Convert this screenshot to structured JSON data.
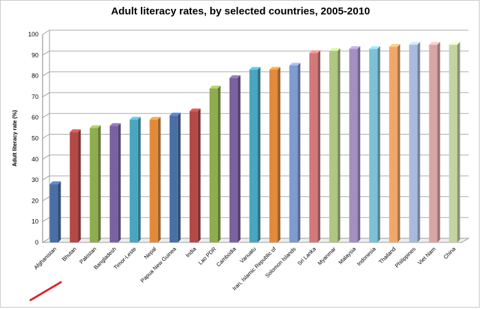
{
  "chart_data": {
    "type": "bar",
    "title": "Adult literacy rates, by selected countries, 2005-2010",
    "xlabel": "",
    "ylabel": "Adult literacy rate (%)",
    "ylim": [
      0,
      100
    ],
    "yticks": [
      "0",
      "10",
      "20",
      "30",
      "40",
      "50",
      "60",
      "70",
      "80",
      "90",
      "100"
    ],
    "grid": true,
    "legend": "none",
    "categories": [
      "Afghanistan",
      "Bhutan",
      "Pakistan",
      "Bangladesh",
      "Timor-Leste",
      "Nepal",
      "Papua New Guinea",
      "India",
      "Lao PDR",
      "Cambodia",
      "Vanuatu",
      "Iran, Islamic Republic of",
      "Solomon Islands",
      "Sri Lanka",
      "Myanmar",
      "Malaysia",
      "Indonesia",
      "Thailand",
      "Philippines",
      "Viet Nam",
      "China"
    ],
    "values": [
      28,
      53,
      55,
      56,
      59,
      59,
      61,
      63,
      74,
      79,
      83,
      83,
      85,
      91,
      92,
      93,
      93,
      94,
      95,
      95,
      95
    ],
    "colors": [
      "#4a6fa5",
      "#b34a47",
      "#8fad4f",
      "#7a62a0",
      "#4aa6c0",
      "#e28a3b",
      "#4a6fa5",
      "#b34a47",
      "#8fad4f",
      "#7a62a0",
      "#4aa6c0",
      "#e28a3b",
      "#7f9bcf",
      "#d27a7a",
      "#afc684",
      "#a38fc0",
      "#7ec0d4",
      "#f0a76a",
      "#a9bbdc",
      "#d8a5a5",
      "#c3d4a3"
    ],
    "highlight": {
      "category": "Afghanistan",
      "color": "#e0202a"
    }
  }
}
